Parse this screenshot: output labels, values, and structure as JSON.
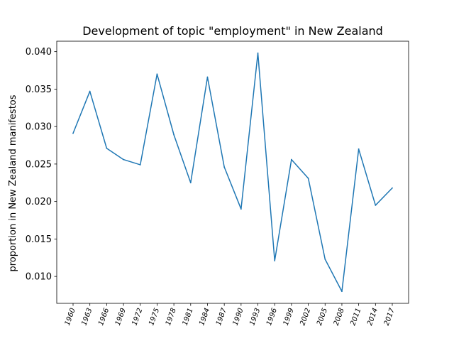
{
  "chart_data": {
    "type": "line",
    "title": "Development of topic \"employment\" in New Zealand",
    "xlabel": "",
    "ylabel": "proportion in New Zealand manifestos",
    "categories": [
      "1960",
      "1963",
      "1966",
      "1969",
      "1972",
      "1975",
      "1978",
      "1981",
      "1984",
      "1987",
      "1990",
      "1993",
      "1996",
      "1999",
      "2002",
      "2005",
      "2008",
      "2011",
      "2014",
      "2017"
    ],
    "series": [
      {
        "values": [
          0.0291,
          0.0347,
          0.0271,
          0.0256,
          0.0249,
          0.037,
          0.0289,
          0.0225,
          0.0366,
          0.0246,
          0.019,
          0.0398,
          0.0121,
          0.0256,
          0.0231,
          0.0123,
          0.008,
          0.027,
          0.0195,
          0.0218
        ],
        "color": "#1f77b4"
      }
    ],
    "yticks": [
      "0.010",
      "0.015",
      "0.020",
      "0.025",
      "0.030",
      "0.035",
      "0.040"
    ],
    "ytick_values": [
      0.01,
      0.015,
      0.02,
      0.025,
      0.03,
      0.035,
      0.04
    ],
    "ylim": [
      0.00641,
      0.04139
    ],
    "grid": false,
    "legend": "none"
  }
}
